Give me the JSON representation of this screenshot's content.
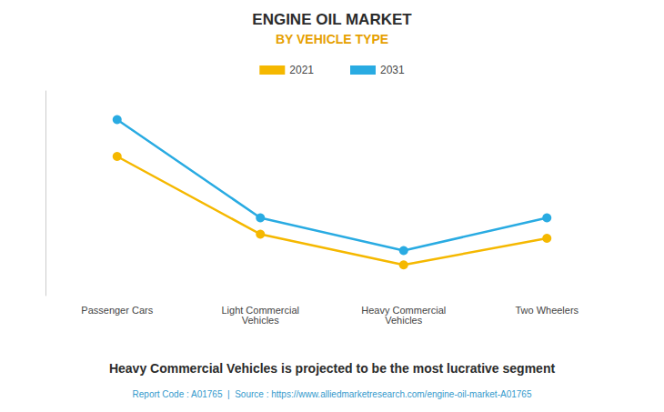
{
  "chart_data": {
    "type": "line",
    "title": "ENGINE OIL MARKET",
    "subtitle": "BY VEHICLE TYPE",
    "categories": [
      "Passenger Cars",
      "Light Commercial\nVehicles",
      "Heavy Commercial\nVehicles",
      "Two Wheelers"
    ],
    "series": [
      {
        "name": "2021",
        "color": "#F5B800",
        "values": [
          0.78,
          0.4,
          0.25,
          0.38
        ]
      },
      {
        "name": "2031",
        "color": "#29ABE2",
        "values": [
          0.96,
          0.48,
          0.32,
          0.48
        ]
      }
    ],
    "ylim": [
      0.1,
      1.1
    ],
    "grid": false,
    "tick_labels": "x",
    "legend": "top",
    "marker": "circle",
    "annotations": [
      "Heavy Commercial Vehicles is projected to be the most lucrative segment",
      "Report Code : A01765  |  Source : https://www.alliedmarketresearch.com/engine-oil-market-A01765"
    ]
  }
}
